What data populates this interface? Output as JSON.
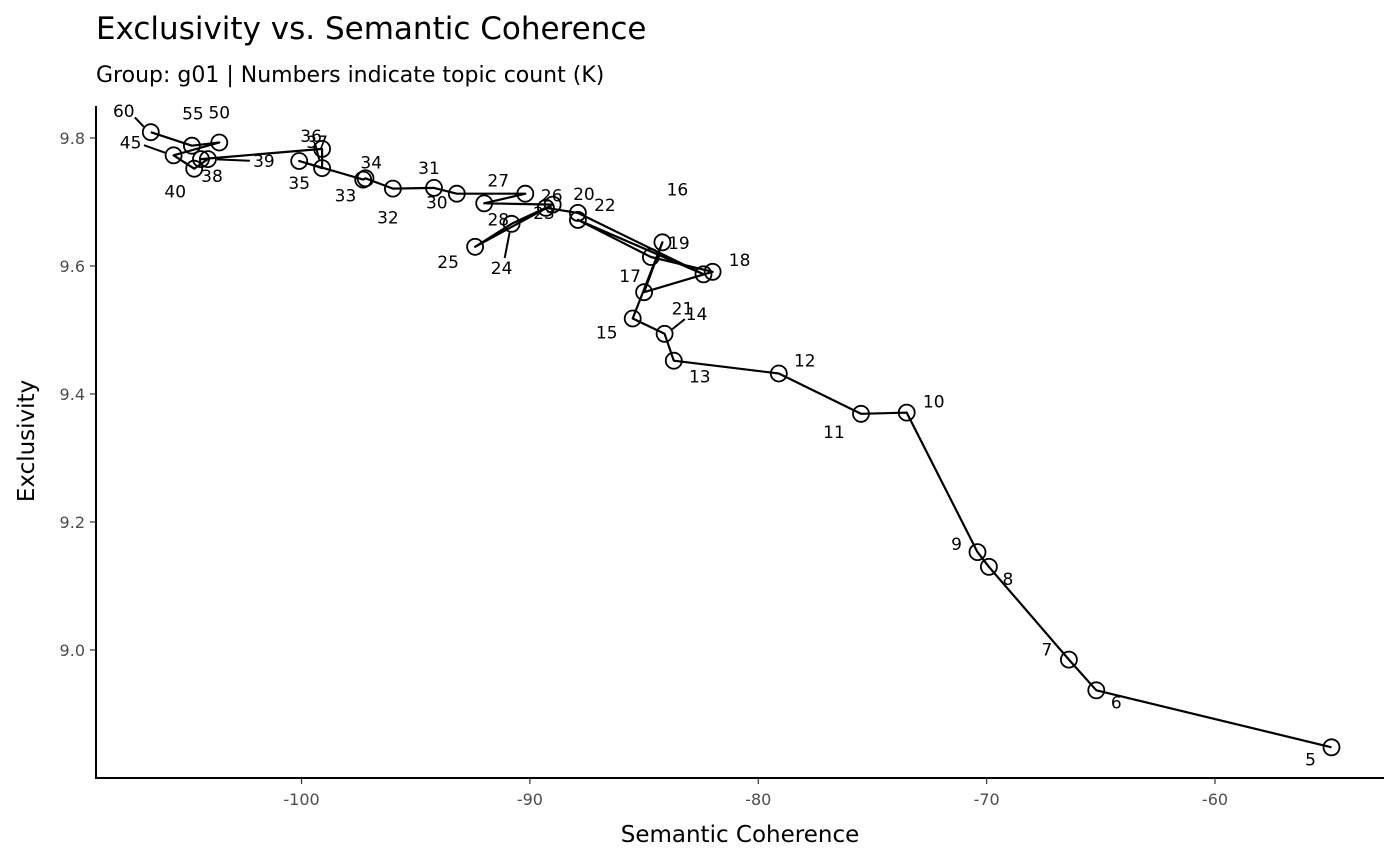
{
  "chart_data": {
    "type": "line",
    "title": "Exclusivity vs. Semantic Coherence",
    "subtitle": "Group: g01 | Numbers indicate topic count (K)",
    "xlabel": "Semantic Coherence",
    "ylabel": "Exclusivity",
    "xlim": [
      -109,
      -52.6
    ],
    "ylim": [
      8.8,
      9.85
    ],
    "xticks": [
      -100,
      -90,
      -80,
      -70,
      -60
    ],
    "yticks": [
      9.0,
      9.2,
      9.4,
      9.6,
      9.8
    ],
    "xtick_labels": [
      "-100",
      "-90",
      "-80",
      "-70",
      "-60"
    ],
    "ytick_labels": [
      "9.0",
      "9.2",
      "9.4",
      "9.6",
      "9.8"
    ],
    "grid": false,
    "series": [
      {
        "points": [
          {
            "k": "5",
            "x": -54.9,
            "y": 8.848
          },
          {
            "k": "6",
            "x": -65.2,
            "y": 8.937
          },
          {
            "k": "7",
            "x": -66.4,
            "y": 8.985
          },
          {
            "k": "8",
            "x": -69.9,
            "y": 9.13
          },
          {
            "k": "9",
            "x": -70.4,
            "y": 9.153
          },
          {
            "k": "10",
            "x": -73.5,
            "y": 9.371
          },
          {
            "k": "11",
            "x": -75.5,
            "y": 9.369
          },
          {
            "k": "12",
            "x": -79.1,
            "y": 9.432
          },
          {
            "k": "13",
            "x": -83.7,
            "y": 9.452
          },
          {
            "k": "14",
            "x": -84.1,
            "y": 9.494
          },
          {
            "k": "15",
            "x": -85.5,
            "y": 9.518
          },
          {
            "k": "16",
            "x": -84.2,
            "y": 9.637
          },
          {
            "k": "17",
            "x": -85.0,
            "y": 9.559
          },
          {
            "k": "18",
            "x": -82.0,
            "y": 9.591
          },
          {
            "k": "19",
            "x": -84.7,
            "y": 9.614
          },
          {
            "k": "20",
            "x": -87.9,
            "y": 9.672
          },
          {
            "k": "21",
            "x": -82.4,
            "y": 9.587
          },
          {
            "k": "22",
            "x": -87.9,
            "y": 9.683
          },
          {
            "k": "23",
            "x": -89.3,
            "y": 9.691
          },
          {
            "k": "24",
            "x": -90.8,
            "y": 9.666
          },
          {
            "k": "25",
            "x": -92.4,
            "y": 9.63
          },
          {
            "k": "26",
            "x": -89.0,
            "y": 9.696
          },
          {
            "k": "27",
            "x": -92.0,
            "y": 9.698
          },
          {
            "k": "28",
            "x": -90.2,
            "y": 9.713
          },
          {
            "k": "30",
            "x": -93.2,
            "y": 9.713
          },
          {
            "k": "31",
            "x": -94.2,
            "y": 9.722
          },
          {
            "k": "32",
            "x": -96.0,
            "y": 9.721
          },
          {
            "k": "33",
            "x": -97.2,
            "y": 9.737
          },
          {
            "k": "34",
            "x": -97.3,
            "y": 9.735
          },
          {
            "k": "35",
            "x": -100.1,
            "y": 9.764
          },
          {
            "k": "36",
            "x": -99.1,
            "y": 9.753
          },
          {
            "k": "37",
            "x": -99.1,
            "y": 9.783
          },
          {
            "k": "38",
            "x": -104.4,
            "y": 9.767
          },
          {
            "k": "39",
            "x": -104.1,
            "y": 9.767
          },
          {
            "k": "40",
            "x": -104.7,
            "y": 9.752
          },
          {
            "k": "45",
            "x": -105.6,
            "y": 9.773
          },
          {
            "k": "50",
            "x": -103.6,
            "y": 9.793
          },
          {
            "k": "55",
            "x": -104.8,
            "y": 9.788
          },
          {
            "k": "60",
            "x": -106.6,
            "y": 9.809
          }
        ]
      }
    ]
  }
}
